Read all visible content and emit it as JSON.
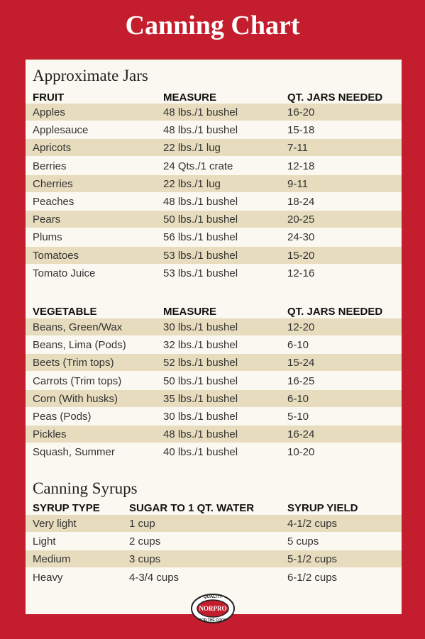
{
  "title": "Canning Chart",
  "sections": [
    {
      "heading": "Approximate Jars",
      "columns": [
        "FRUIT",
        "MEASURE",
        "QT. JARS NEEDED"
      ],
      "rows": [
        [
          "Apples",
          "48 lbs./1 bushel",
          "16-20"
        ],
        [
          "Applesauce",
          "48 lbs./1 bushel",
          "15-18"
        ],
        [
          "Apricots",
          "22 lbs./1 lug",
          "7-11"
        ],
        [
          "Berries",
          "24 Qts./1 crate",
          "12-18"
        ],
        [
          "Cherries",
          "22 lbs./1 lug",
          "9-11"
        ],
        [
          "Peaches",
          "48 lbs./1 bushel",
          "18-24"
        ],
        [
          "Pears",
          "50 lbs./1 bushel",
          "20-25"
        ],
        [
          "Plums",
          "56 lbs./1 bushel",
          "24-30"
        ],
        [
          "Tomatoes",
          "53 lbs./1 bushel",
          "15-20"
        ],
        [
          "Tomato Juice",
          "53 lbs./1 bushel",
          "12-16"
        ]
      ]
    },
    {
      "columns": [
        "VEGETABLE",
        "MEASURE",
        "QT. JARS NEEDED"
      ],
      "rows": [
        [
          "Beans, Green/Wax",
          "30 lbs./1 bushel",
          "12-20"
        ],
        [
          "Beans, Lima (Pods)",
          "32 lbs./1 bushel",
          "6-10"
        ],
        [
          "Beets (Trim tops)",
          "52 lbs./1 bushel",
          "15-24"
        ],
        [
          "Carrots (Trim tops)",
          "50 lbs./1 bushel",
          "16-25"
        ],
        [
          "Corn (With husks)",
          "35 lbs./1 bushel",
          "6-10"
        ],
        [
          "Peas (Pods)",
          "30 lbs./1 bushel",
          "5-10"
        ],
        [
          "Pickles",
          "48 lbs./1 bushel",
          "16-24"
        ],
        [
          "Squash, Summer",
          "40 lbs./1 bushel",
          "10-20"
        ]
      ]
    },
    {
      "heading": "Canning Syrups",
      "columns": [
        "SYRUP TYPE",
        "SUGAR TO 1 QT. WATER",
        "SYRUP YIELD"
      ],
      "rows": [
        [
          "Very light",
          "1 cup",
          "4-1/2 cups"
        ],
        [
          "Light",
          "2 cups",
          "5 cups"
        ],
        [
          "Medium",
          "3 cups",
          "5-1/2 cups"
        ],
        [
          "Heavy",
          "4-3/4 cups",
          "6-1/2 cups"
        ]
      ]
    }
  ],
  "logo": {
    "brand": "NORPRO",
    "top": "QUALITY",
    "bottom": "FOR THE COOK"
  }
}
